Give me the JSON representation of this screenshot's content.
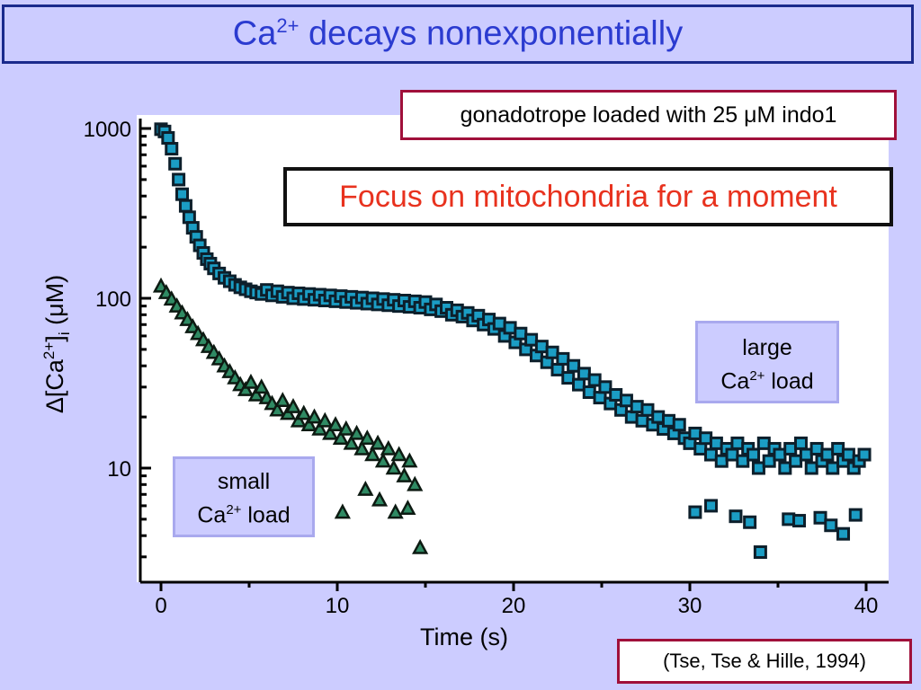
{
  "slide": {
    "title_main": "Ca",
    "title_sup": "2+",
    "title_rest": " decays nonexponentially",
    "dye_note": "gonadotrope loaded with 25 μM indo1",
    "focus_note": "Focus on mitochondria for a moment",
    "citation": "(Tse, Tse & Hille, 1994)"
  },
  "labels": {
    "large_line1": "large",
    "large_ca": "Ca",
    "large_sup": "2+",
    "large_rest": " load",
    "small_line1": "small",
    "small_ca": "Ca",
    "small_sup": "2+",
    "small_rest": " load"
  },
  "colors": {
    "square_fill": "#1b9dc4",
    "square_edge": "#0d1f2b",
    "triangle_fill": "#2f8a63",
    "triangle_edge": "#0d1a12"
  },
  "chart_data": {
    "type": "scatter",
    "xlabel": "Time (s)",
    "ylabel_parts": {
      "delta": "Δ",
      "open": "[Ca",
      "sup": "2+",
      "close": "]",
      "sub": "i",
      "unit": " (μM)"
    },
    "x_ticks": [
      0,
      10,
      20,
      30,
      40
    ],
    "y_ticks": [
      10,
      100,
      1000
    ],
    "y_tick_labels": [
      "10",
      "100",
      "1000"
    ],
    "xlim": [
      -1.5,
      41.5
    ],
    "ylim": [
      2.6,
      1150
    ],
    "yscale": "log",
    "grid": false,
    "series": [
      {
        "marker": "square",
        "x": [
          0.0,
          0.2,
          0.4,
          0.6,
          0.8,
          1.0,
          1.2,
          1.4,
          1.6,
          1.8,
          2.0,
          2.2,
          2.4,
          2.6,
          2.8,
          3.0,
          3.3,
          3.6,
          3.9,
          4.2,
          4.5,
          4.8,
          5.1,
          5.4,
          5.7,
          6.0,
          6.3,
          6.6,
          6.9,
          7.2,
          7.5,
          7.8,
          8.1,
          8.4,
          8.7,
          9.0,
          9.3,
          9.6,
          9.9,
          10.2,
          10.5,
          10.8,
          11.1,
          11.4,
          11.7,
          12.0,
          12.3,
          12.6,
          12.9,
          13.2,
          13.5,
          13.8,
          14.1,
          14.4,
          14.7,
          15.0,
          15.3,
          15.6,
          15.9,
          16.2,
          16.5,
          16.8,
          17.1,
          17.4,
          17.7,
          18.0,
          18.3,
          18.6,
          18.9,
          19.2,
          19.5,
          19.8,
          20.1,
          20.4,
          20.7,
          21.0,
          21.3,
          21.6,
          21.9,
          22.2,
          22.5,
          22.8,
          23.1,
          23.4,
          23.7,
          24.0,
          24.3,
          24.6,
          24.9,
          25.2,
          25.5,
          25.8,
          26.1,
          26.4,
          26.7,
          27.0,
          27.3,
          27.6,
          27.9,
          28.2,
          28.5,
          28.8,
          29.1,
          29.4,
          29.7,
          30.0,
          30.3,
          30.6,
          30.9,
          31.2,
          31.5,
          31.8,
          32.1,
          32.4,
          32.7,
          33.0,
          33.3,
          33.6,
          33.9,
          34.2,
          34.5,
          34.8,
          35.1,
          35.4,
          35.7,
          36.0,
          36.3,
          36.6,
          36.9,
          37.2,
          37.5,
          37.8,
          38.1,
          38.4,
          38.7,
          39.0,
          39.3,
          39.6,
          39.9,
          30.3,
          31.2,
          32.6,
          33.4,
          34.0,
          35.6,
          36.2,
          37.4,
          38.0,
          38.7,
          39.4
        ],
        "y": [
          990,
          960,
          880,
          760,
          620,
          500,
          410,
          350,
          300,
          260,
          230,
          205,
          185,
          170,
          160,
          150,
          140,
          132,
          126,
          120,
          116,
          113,
          110,
          108,
          106,
          112,
          104,
          110,
          102,
          108,
          100,
          107,
          99,
          106,
          98,
          105,
          97,
          104,
          96,
          103,
          95,
          102,
          94,
          101,
          93,
          100,
          92,
          99,
          91,
          98,
          90,
          97,
          89,
          96,
          88,
          95,
          86,
          92,
          84,
          88,
          80,
          85,
          78,
          82,
          74,
          79,
          70,
          75,
          66,
          71,
          60,
          67,
          55,
          62,
          50,
          57,
          46,
          52,
          42,
          48,
          38,
          44,
          34,
          40,
          31,
          36,
          28,
          33,
          26,
          30,
          24,
          27,
          22,
          25,
          20,
          23,
          19,
          22,
          18,
          20,
          17,
          19,
          16,
          18,
          15,
          14,
          16,
          13,
          15,
          12,
          14,
          11,
          13,
          12,
          14,
          11,
          13,
          12,
          10,
          14,
          11,
          13,
          12,
          10,
          13,
          11,
          14,
          12,
          10,
          13,
          11,
          12,
          10,
          13,
          11,
          12,
          10,
          11,
          12,
          5.5,
          6.0,
          5.2,
          4.8,
          3.2,
          5.0,
          4.9,
          5.1,
          4.6,
          4.1,
          5.3
        ]
      },
      {
        "marker": "triangle",
        "x": [
          0.0,
          0.3,
          0.6,
          0.9,
          1.2,
          1.5,
          1.8,
          2.1,
          2.4,
          2.7,
          3.0,
          3.3,
          3.6,
          3.9,
          4.2,
          4.5,
          4.8,
          5.1,
          5.4,
          5.7,
          6.0,
          6.3,
          6.6,
          6.9,
          7.2,
          7.5,
          7.8,
          8.1,
          8.4,
          8.7,
          9.0,
          9.3,
          9.6,
          9.9,
          10.2,
          10.5,
          10.8,
          11.1,
          11.4,
          11.7,
          12.0,
          12.3,
          12.6,
          12.9,
          13.2,
          13.5,
          13.8,
          14.1,
          14.4,
          14.7,
          10.3,
          11.6,
          12.4,
          13.3,
          14.0
        ],
        "y": [
          118,
          108,
          99,
          90,
          82,
          75,
          68,
          62,
          57,
          52,
          48,
          44,
          40,
          37,
          34,
          31,
          29,
          32,
          27,
          30,
          26,
          24,
          22,
          25,
          21,
          23,
          19,
          21,
          18,
          20,
          17,
          19,
          16,
          18,
          15,
          17,
          14,
          16,
          13,
          15,
          12,
          14,
          11,
          13,
          10,
          12,
          9,
          11,
          8,
          3.4,
          5.5,
          7.5,
          6.5,
          5.5,
          5.8
        ]
      }
    ]
  }
}
